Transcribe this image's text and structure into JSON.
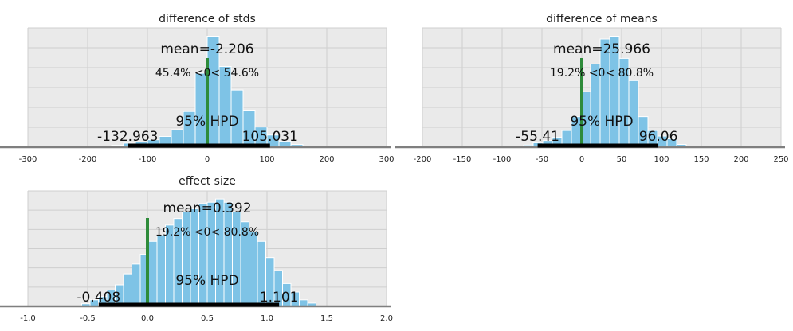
{
  "chart_data": [
    {
      "type": "bar",
      "title": "difference of stds",
      "xlim": [
        -300,
        300
      ],
      "xticks": [
        -300,
        -200,
        -100,
        0,
        100,
        200,
        300
      ],
      "grid": true,
      "bin_edges": [
        -200,
        -180,
        -160,
        -140,
        -120,
        -100,
        -80,
        -60,
        -40,
        -20,
        0,
        20,
        40,
        60,
        80,
        100,
        120,
        140,
        160,
        180
      ],
      "counts": [
        0.005,
        0.01,
        0.03,
        0.06,
        0.08,
        0.11,
        0.16,
        0.26,
        0.53,
        1.1,
        1.65,
        1.2,
        0.85,
        0.55,
        0.3,
        0.18,
        0.09,
        0.04,
        0.01
      ],
      "ref_value": 0,
      "mean_label": "mean=-2.206",
      "ref_label": "45.4% <0< 54.6%",
      "hpd_label": "95% HPD",
      "hpd_range": [
        -132.963,
        105.031
      ],
      "hpd_low_label": "-132.963",
      "hpd_high_label": "105.031"
    },
    {
      "type": "bar",
      "title": "difference of means",
      "xlim": [
        -200,
        250
      ],
      "xticks": [
        -200,
        -150,
        -100,
        -50,
        0,
        50,
        100,
        150,
        200,
        250
      ],
      "grid": true,
      "bin_edges": [
        -85,
        -73,
        -61,
        -49,
        -37,
        -25,
        -13,
        -1,
        11,
        23,
        35,
        47,
        59,
        71,
        83,
        95,
        107,
        119,
        131
      ],
      "counts": [
        0.01,
        0.04,
        0.08,
        0.12,
        0.18,
        0.3,
        0.55,
        1.0,
        1.5,
        1.95,
        2.0,
        1.6,
        1.2,
        0.55,
        0.3,
        0.2,
        0.15,
        0.05
      ],
      "ref_value": 0,
      "mean_label": "mean=25.966",
      "ref_label": "19.2% <0< 80.8%",
      "hpd_label": "95% HPD",
      "hpd_range": [
        -55.41,
        96.06
      ],
      "hpd_low_label": "-55.41",
      "hpd_high_label": "96.06"
    },
    {
      "type": "bar",
      "title": "effect size",
      "xlim": [
        -1.0,
        2.0
      ],
      "xticks": [
        -1.0,
        -0.5,
        0.0,
        0.5,
        1.0,
        1.5,
        2.0
      ],
      "grid": true,
      "bin_edges": [
        -0.55,
        -0.48,
        -0.41,
        -0.34,
        -0.27,
        -0.2,
        -0.13,
        -0.06,
        0.01,
        0.08,
        0.15,
        0.22,
        0.29,
        0.36,
        0.43,
        0.5,
        0.57,
        0.64,
        0.71,
        0.78,
        0.85,
        0.92,
        0.99,
        1.06,
        1.13,
        1.2,
        1.27,
        1.34,
        1.41
      ],
      "counts": [
        0.04,
        0.1,
        0.15,
        0.25,
        0.33,
        0.5,
        0.65,
        0.8,
        1.0,
        1.1,
        1.25,
        1.35,
        1.45,
        1.5,
        1.58,
        1.6,
        1.65,
        1.6,
        1.45,
        1.3,
        1.15,
        1.0,
        0.75,
        0.55,
        0.35,
        0.22,
        0.1,
        0.05
      ],
      "ref_value": 0,
      "mean_label": "mean=0.392",
      "ref_label": "19.2% <0< 80.8%",
      "hpd_label": "95% HPD",
      "hpd_range": [
        -0.408,
        1.101
      ],
      "hpd_low_label": "-0.408",
      "hpd_high_label": "1.101"
    }
  ],
  "colors": {
    "plot_background": "#eaeaea",
    "grid": "#cfcfcf",
    "bar_fill": "#7ec3e6",
    "bar_edge": "#ffffff",
    "hpd_bar": "#000000",
    "ref_line": "#2e8b3a",
    "axis_line": "#7f7f7f"
  }
}
